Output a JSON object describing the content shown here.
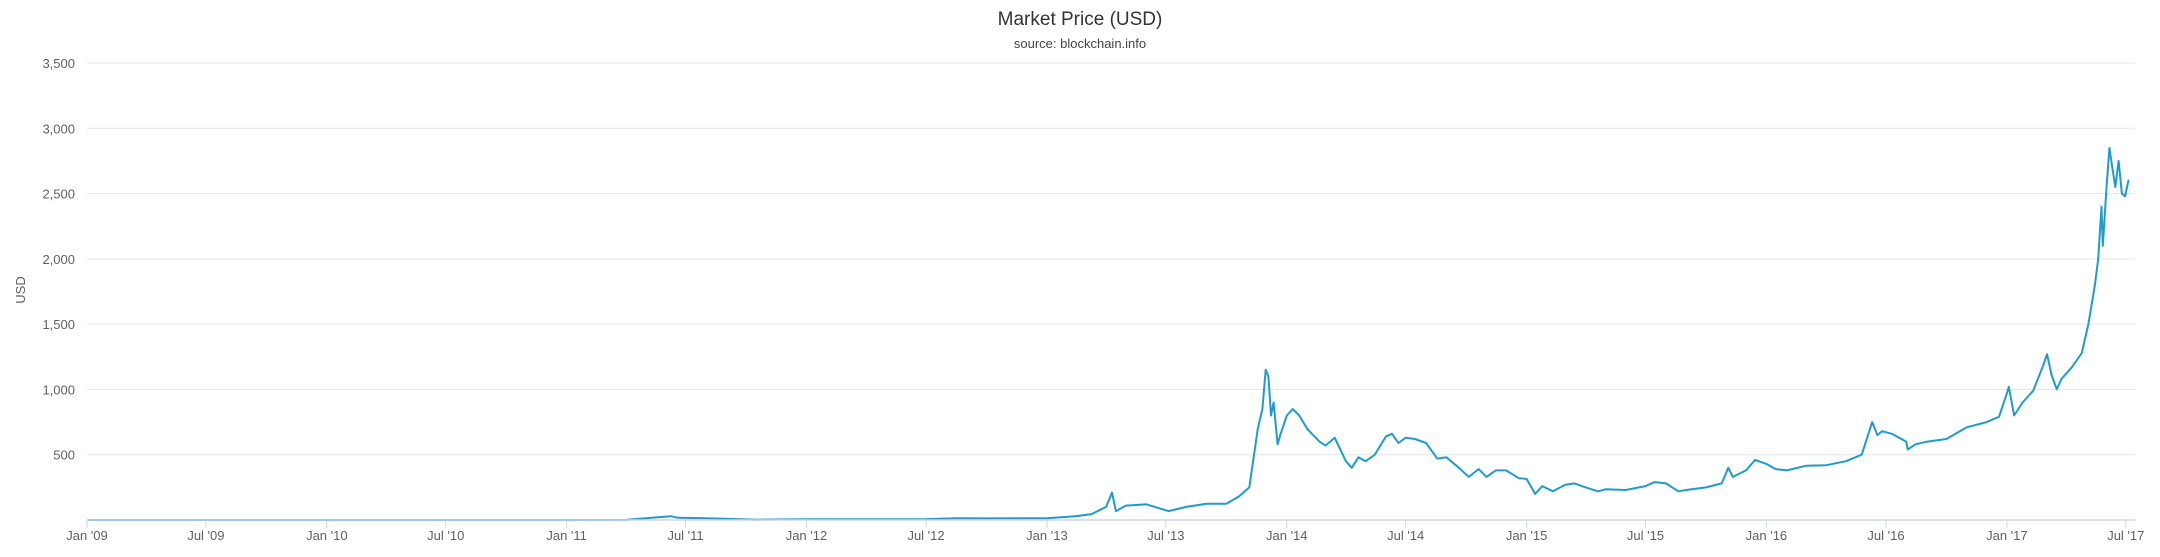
{
  "chart_data": {
    "type": "line",
    "title": "Market Price (USD)",
    "subtitle": "source: blockchain.info",
    "xlabel": "",
    "ylabel": "USD",
    "xlim": [
      "2009-01-01",
      "2017-07-15"
    ],
    "ylim": [
      0,
      3500
    ],
    "y_ticks": [
      500,
      1000,
      1500,
      2000,
      2500,
      3000,
      3500
    ],
    "y_tick_labels": [
      "500",
      "1,000",
      "1,500",
      "2,000",
      "2,500",
      "3,000",
      "3,500"
    ],
    "x_ticks": [
      "2009-01-01",
      "2009-07-01",
      "2010-01-01",
      "2010-07-01",
      "2011-01-01",
      "2011-07-01",
      "2012-01-01",
      "2012-07-01",
      "2013-01-01",
      "2013-07-01",
      "2014-01-01",
      "2014-07-01",
      "2015-01-01",
      "2015-07-01",
      "2016-01-01",
      "2016-07-01",
      "2017-01-01",
      "2017-07-01"
    ],
    "x_tick_labels": [
      "Jan '09",
      "Jul '09",
      "Jan '10",
      "Jul '10",
      "Jan '11",
      "Jul '11",
      "Jan '12",
      "Jul '12",
      "Jan '13",
      "Jul '13",
      "Jan '14",
      "Jul '14",
      "Jan '15",
      "Jul '15",
      "Jan '16",
      "Jul '16",
      "Jan '17",
      "Jul '17"
    ],
    "grid": true,
    "legend": "none",
    "color": "#1f9bcf",
    "series": [
      {
        "x": [
          "2009-01-03",
          "2010-07-17",
          "2011-01-01",
          "2011-04-01",
          "2011-06-08",
          "2011-06-20",
          "2011-08-01",
          "2011-10-20",
          "2012-01-01",
          "2012-04-01",
          "2012-07-01",
          "2012-08-17",
          "2012-10-01",
          "2013-01-01",
          "2013-02-15",
          "2013-03-10",
          "2013-04-01",
          "2013-04-10",
          "2013-04-16",
          "2013-05-01",
          "2013-06-01",
          "2013-07-05",
          "2013-08-01",
          "2013-09-01",
          "2013-10-01",
          "2013-10-20",
          "2013-11-05",
          "2013-11-18",
          "2013-11-25",
          "2013-11-30",
          "2013-12-04",
          "2013-12-08",
          "2013-12-12",
          "2013-12-18",
          "2013-12-22",
          "2014-01-01",
          "2014-01-10",
          "2014-01-20",
          "2014-02-01",
          "2014-02-10",
          "2014-02-20",
          "2014-03-01",
          "2014-03-15",
          "2014-04-01",
          "2014-04-10",
          "2014-04-20",
          "2014-05-01",
          "2014-05-15",
          "2014-06-01",
          "2014-06-10",
          "2014-06-20",
          "2014-07-01",
          "2014-07-15",
          "2014-08-01",
          "2014-08-18",
          "2014-09-01",
          "2014-09-20",
          "2014-10-05",
          "2014-10-20",
          "2014-11-01",
          "2014-11-15",
          "2014-12-01",
          "2014-12-20",
          "2015-01-01",
          "2015-01-14",
          "2015-01-25",
          "2015-02-10",
          "2015-03-01",
          "2015-03-15",
          "2015-04-01",
          "2015-04-20",
          "2015-05-01",
          "2015-06-01",
          "2015-07-01",
          "2015-07-15",
          "2015-08-01",
          "2015-08-20",
          "2015-09-01",
          "2015-10-01",
          "2015-10-25",
          "2015-11-04",
          "2015-11-11",
          "2015-12-01",
          "2015-12-15",
          "2016-01-01",
          "2016-01-15",
          "2016-02-01",
          "2016-03-01",
          "2016-04-01",
          "2016-05-01",
          "2016-05-25",
          "2016-06-10",
          "2016-06-18",
          "2016-06-25",
          "2016-07-10",
          "2016-08-01",
          "2016-08-03",
          "2016-08-15",
          "2016-09-01",
          "2016-10-01",
          "2016-11-01",
          "2016-12-01",
          "2016-12-20",
          "2017-01-01",
          "2017-01-04",
          "2017-01-12",
          "2017-01-25",
          "2017-02-10",
          "2017-02-25",
          "2017-03-03",
          "2017-03-10",
          "2017-03-18",
          "2017-03-25",
          "2017-04-10",
          "2017-04-25",
          "2017-05-05",
          "2017-05-15",
          "2017-05-20",
          "2017-05-25",
          "2017-05-27",
          "2017-06-01",
          "2017-06-06",
          "2017-06-11",
          "2017-06-15",
          "2017-06-20",
          "2017-06-25",
          "2017-06-30",
          "2017-07-05"
        ],
        "y": [
          0,
          0.05,
          0.3,
          0.8,
          29,
          17,
          13,
          2.5,
          5.5,
          5,
          6.7,
          13,
          12,
          13.5,
          30,
          45,
          100,
          210,
          68,
          110,
          120,
          68,
          100,
          125,
          125,
          180,
          250,
          700,
          850,
          1150,
          1100,
          800,
          900,
          580,
          650,
          800,
          850,
          800,
          700,
          650,
          600,
          570,
          630,
          450,
          400,
          480,
          450,
          500,
          640,
          660,
          590,
          630,
          620,
          590,
          470,
          480,
          400,
          330,
          390,
          330,
          380,
          380,
          320,
          315,
          200,
          260,
          220,
          270,
          280,
          250,
          220,
          235,
          230,
          260,
          290,
          280,
          220,
          230,
          250,
          280,
          400,
          330,
          380,
          460,
          430,
          390,
          380,
          415,
          420,
          450,
          500,
          750,
          650,
          680,
          660,
          600,
          540,
          580,
          600,
          620,
          710,
          750,
          790,
          970,
          1020,
          800,
          900,
          990,
          1180,
          1270,
          1110,
          1000,
          1080,
          1170,
          1280,
          1500,
          1800,
          2000,
          2400,
          2100,
          2500,
          2850,
          2680,
          2550,
          2750,
          2500,
          2480,
          2600
        ]
      }
    ]
  }
}
